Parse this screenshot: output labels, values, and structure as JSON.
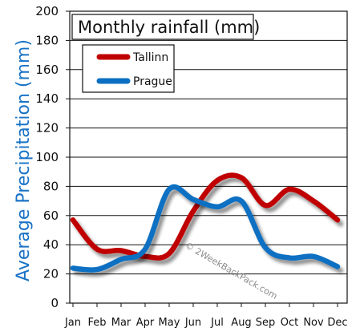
{
  "chart_data": {
    "type": "line",
    "title": "Monthly rainfall (mm)",
    "xlabel": "",
    "ylabel": "Average Precipitation (mm)",
    "categories": [
      "Jan",
      "Feb",
      "Mar",
      "Apr",
      "May",
      "Jun",
      "Jul",
      "Aug",
      "Sep",
      "Oct",
      "Nov",
      "Dec"
    ],
    "ylim": [
      0,
      200
    ],
    "yticks": [
      0,
      20,
      40,
      60,
      80,
      100,
      120,
      140,
      160,
      180,
      200
    ],
    "grid": true,
    "legend_position": "top-left",
    "watermark": "© 2WeekBackPack.com",
    "series": [
      {
        "name": "Tallinn",
        "color": "#c00000",
        "values": [
          57,
          37,
          36,
          32,
          34,
          63,
          84,
          86,
          67,
          78,
          70,
          57
        ]
      },
      {
        "name": "Prague",
        "color": "#0a6fc2",
        "values": [
          24,
          23,
          30,
          37,
          78,
          71,
          66,
          70,
          38,
          31,
          32,
          25
        ]
      }
    ]
  }
}
